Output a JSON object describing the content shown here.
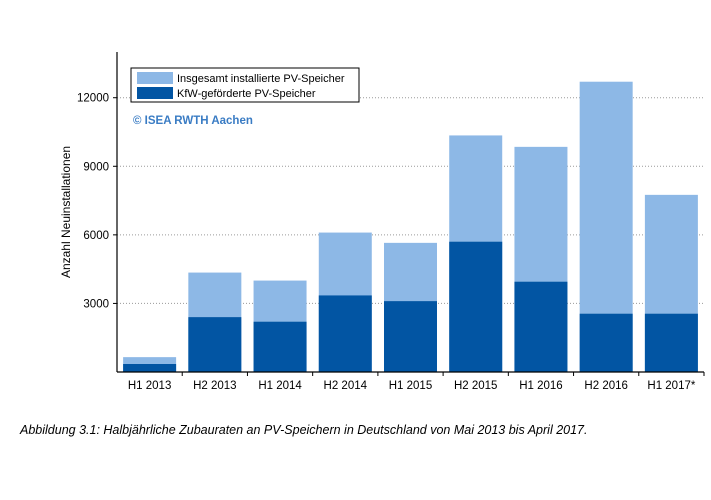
{
  "chart_data": {
    "type": "bar",
    "stacked": "overlay",
    "categories": [
      "H1 2013",
      "H2 2013",
      "H1 2014",
      "H2 2014",
      "H1 2015",
      "H2 2015",
      "H1 2016",
      "H2 2016",
      "H1 2017*"
    ],
    "series": [
      {
        "name": "Insgesamt installierte PV-Speicher",
        "color": "#8db8e6",
        "values": [
          650,
          4350,
          4000,
          6100,
          5650,
          10350,
          9850,
          12700,
          7750
        ]
      },
      {
        "name": "KfW-geförderte PV-Speicher",
        "color": "#0255a3",
        "values": [
          350,
          2400,
          2200,
          3350,
          3100,
          5700,
          3950,
          2550,
          2550
        ]
      }
    ],
    "ylabel": "Anzahl Neuinstallationen",
    "xlabel": "",
    "yticks": [
      3000,
      6000,
      9000,
      12000
    ],
    "ylim": [
      0,
      14000
    ],
    "grid": "horizontal dotted",
    "legend_position": "top-left",
    "annotation": "© ISEA RWTH Aachen",
    "annotation_color": "#3a7cc4"
  },
  "caption": "Abbildung 3.1: Halbjährliche Zubauraten an PV-Speichern in Deutschland von Mai 2013 bis April 2017."
}
